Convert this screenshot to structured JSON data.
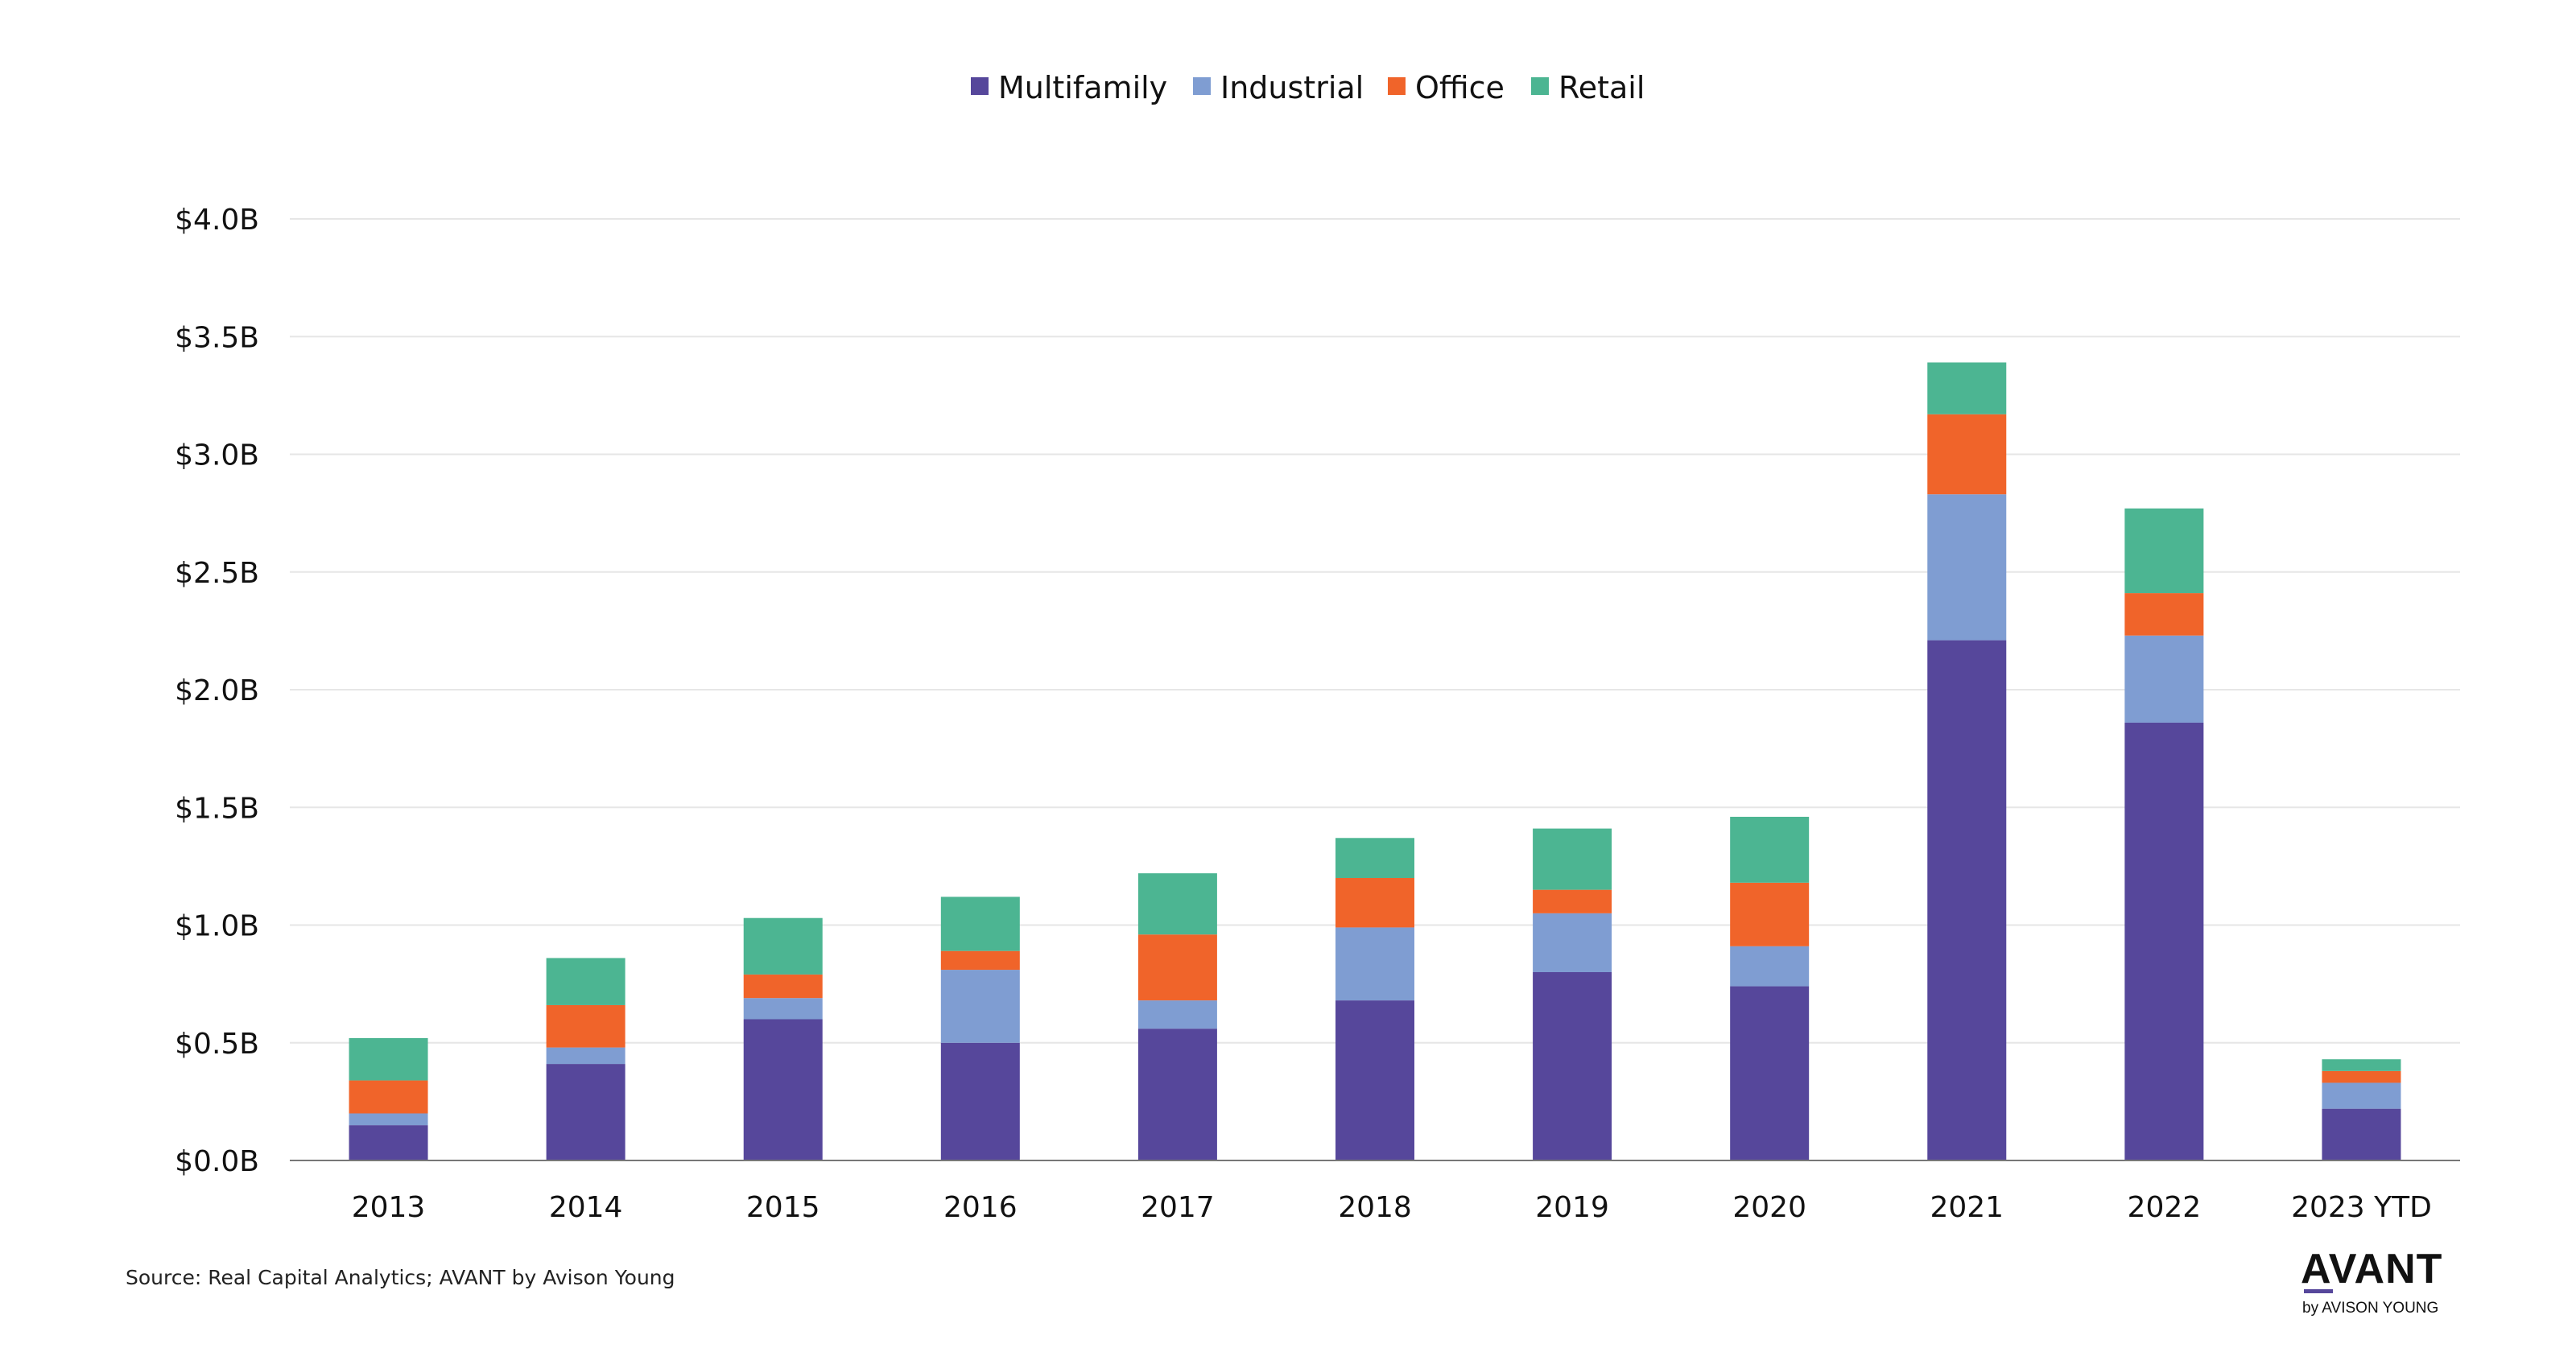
{
  "chart_data": {
    "type": "bar",
    "stacked": true,
    "title": "",
    "xlabel": "",
    "ylabel": "",
    "categories": [
      "2013",
      "2014",
      "2015",
      "2016",
      "2017",
      "2018",
      "2019",
      "2020",
      "2021",
      "2022",
      "2023 YTD"
    ],
    "series": [
      {
        "name": "Multifamily",
        "color": "#56479b",
        "values": [
          0.15,
          0.41,
          0.6,
          0.5,
          0.56,
          0.68,
          0.8,
          0.74,
          2.21,
          1.86,
          0.22
        ]
      },
      {
        "name": "Industrial",
        "color": "#7f9dd2",
        "values": [
          0.05,
          0.07,
          0.09,
          0.31,
          0.12,
          0.31,
          0.25,
          0.17,
          0.62,
          0.37,
          0.11
        ]
      },
      {
        "name": "Office",
        "color": "#f0642a",
        "values": [
          0.14,
          0.18,
          0.1,
          0.08,
          0.28,
          0.21,
          0.1,
          0.27,
          0.34,
          0.18,
          0.05
        ]
      },
      {
        "name": "Retail",
        "color": "#4cb592",
        "values": [
          0.18,
          0.2,
          0.24,
          0.23,
          0.26,
          0.17,
          0.26,
          0.28,
          0.22,
          0.36,
          0.05
        ]
      }
    ],
    "yticks": [
      "$0.0B",
      "$0.5B",
      "$1.0B",
      "$1.5B",
      "$2.0B",
      "$2.5B",
      "$3.0B",
      "$3.5B",
      "$4.0B"
    ],
    "ylim": [
      0,
      4.0
    ],
    "ytick_step": 0.5,
    "grid": true,
    "legend": "top-center"
  },
  "source": "Source: Real Capital Analytics; AVANT by Avison Young",
  "logo": {
    "main": "AVANT",
    "sub": "by AVISON YOUNG",
    "underline_color": "#56479b"
  },
  "colors": {
    "grid": "#e6e6e6",
    "axis": "#777777"
  }
}
